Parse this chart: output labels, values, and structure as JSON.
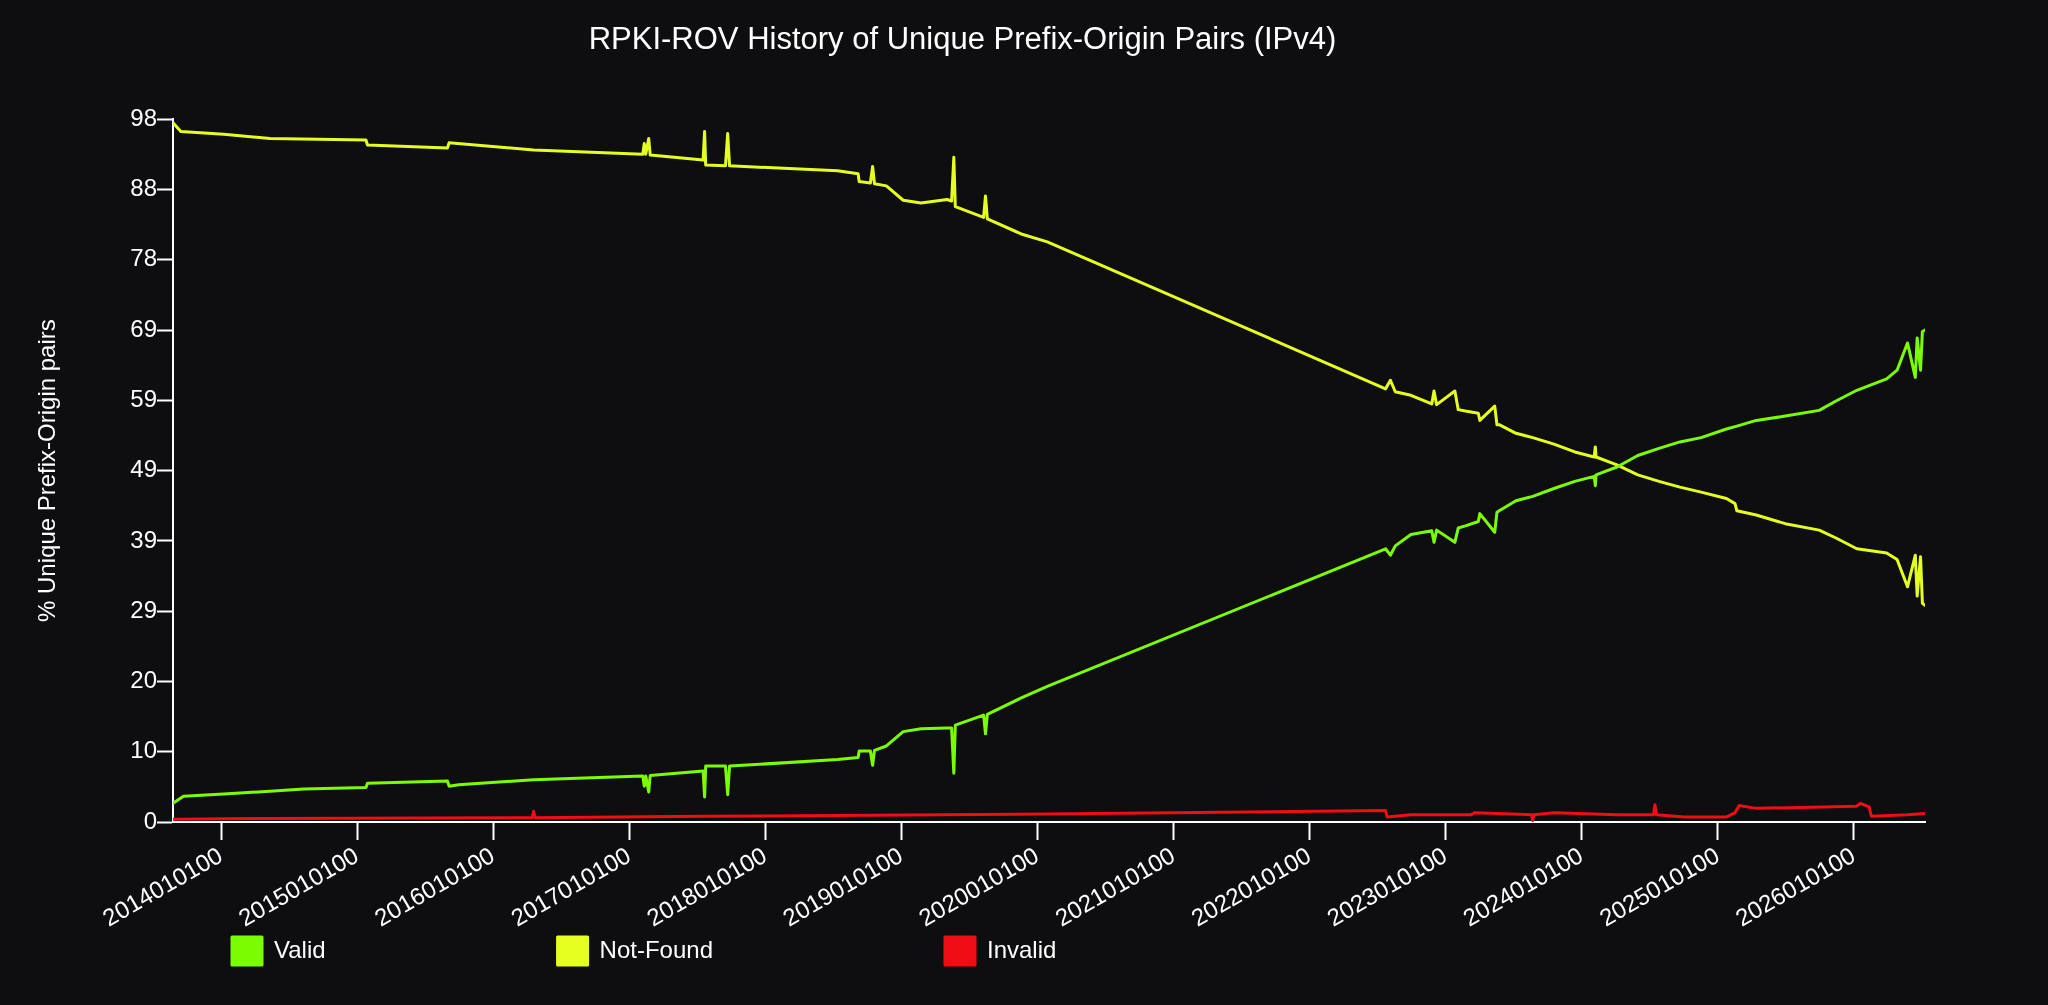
{
  "chart_data": {
    "type": "line",
    "title": "RPKI-ROV History of Unique Prefix-Origin Pairs (IPv4)",
    "ylabel": "% Unique Prefix-Origin pairs",
    "xlim": [
      "2013-08-25",
      "2026-07-11"
    ],
    "xticks": [
      {
        "value": "2014-01-01",
        "label": "2014010100"
      },
      {
        "value": "2015-01-01",
        "label": "2015010100"
      },
      {
        "value": "2016-01-01",
        "label": "2016010100"
      },
      {
        "value": "2017-01-01",
        "label": "2017010100"
      },
      {
        "value": "2018-01-01",
        "label": "2018010100"
      },
      {
        "value": "2019-01-01",
        "label": "2019010100"
      },
      {
        "value": "2020-01-01",
        "label": "2020010100"
      },
      {
        "value": "2021-01-01",
        "label": "2021010100"
      },
      {
        "value": "2022-01-01",
        "label": "2022010100"
      },
      {
        "value": "2023-01-01",
        "label": "2023010100"
      },
      {
        "value": "2024-01-01",
        "label": "2024010100"
      },
      {
        "value": "2025-01-01",
        "label": "2025010100"
      },
      {
        "value": "2026-01-01",
        "label": "2026010100"
      }
    ],
    "ylim": [
      0,
      98
    ],
    "yticks": [
      0,
      {
        "value": 9.8,
        "label": "10"
      },
      {
        "value": 19.6,
        "label": "20"
      },
      {
        "value": 29.4,
        "label": "29"
      },
      {
        "value": 39.2,
        "label": "39"
      },
      49,
      {
        "value": 58.8,
        "label": "59"
      },
      {
        "value": 68.6,
        "label": "69"
      },
      {
        "value": 78.4,
        "label": "78"
      },
      {
        "value": 88.2,
        "label": "88"
      },
      98
    ],
    "grid": false,
    "legend": "bottom left",
    "marker": "none",
    "line_style": "solid",
    "series": [
      {
        "name": "Valid",
        "color": "#7cfc00",
        "x": [
          "2013-08-25",
          "2013-09-22",
          "2014-01-08",
          "2014-05-12",
          "2014-08-11",
          "2015-01-25",
          "2015-01-29",
          "2015-09-01",
          "2015-09-05",
          "2015-10-01",
          "2016-04-19",
          "2017-02-06",
          "2017-02-10",
          "2017-02-14",
          "2017-02-22",
          "2017-02-26",
          "2017-07-18",
          "2017-07-22",
          "2017-07-25",
          "2017-09-16",
          "2017-09-22",
          "2017-09-27",
          "2018-07-14",
          "2018-09-07",
          "2018-09-10",
          "2018-10-10",
          "2018-10-16",
          "2018-10-21",
          "2018-11-22",
          "2019-01-06",
          "2019-02-23",
          "2019-05-04",
          "2019-05-16",
          "2019-05-22",
          "2019-05-26",
          "2019-08-10",
          "2019-08-15",
          "2019-08-20",
          "2019-11-19",
          "2020-01-28",
          "2022-07-24",
          "2022-08-06",
          "2022-08-19",
          "2022-09-30",
          "2022-11-25",
          "2022-12-01",
          "2022-12-08",
          "2023-01-26",
          "2023-02-04",
          "2023-02-23",
          "2023-03-30",
          "2023-04-03",
          "2023-05-13",
          "2023-05-19",
          "2023-05-25",
          "2023-07-09",
          "2023-08-23",
          "2023-10-19",
          "2023-12-14",
          "2024-02-04",
          "2024-02-07",
          "2024-02-09",
          "2024-04-05",
          "2024-05-31",
          "2024-07-27",
          "2024-09-21",
          "2024-11-17",
          "2025-01-24",
          "2025-02-21",
          "2025-04-14",
          "2025-07-01",
          "2025-09-30",
          "2025-11-14",
          "2026-01-09",
          "2026-03-30",
          "2026-04-27",
          "2026-05-25",
          "2026-06-15",
          "2026-06-20",
          "2026-06-29",
          "2026-07-04",
          "2026-07-11"
        ],
        "values": [
          2.6,
          3.6,
          3.9,
          4.3,
          4.6,
          4.8,
          5.4,
          5.7,
          5.0,
          5.2,
          5.9,
          6.4,
          5.0,
          6.4,
          4.2,
          6.5,
          7.1,
          3.5,
          7.8,
          7.8,
          3.8,
          7.8,
          8.7,
          9.0,
          9.9,
          9.9,
          7.9,
          10.0,
          10.6,
          12.6,
          13.0,
          13.1,
          13.1,
          6.8,
          13.5,
          14.9,
          12.3,
          15.0,
          17.3,
          18.9,
          38.1,
          37.2,
          38.5,
          40.1,
          40.6,
          39.0,
          40.7,
          39.0,
          41.0,
          41.3,
          41.9,
          43.0,
          40.4,
          43.2,
          43.4,
          44.8,
          45.4,
          46.5,
          47.5,
          48.2,
          46.9,
          48.4,
          49.5,
          51.1,
          52.1,
          53.0,
          53.6,
          54.8,
          55.2,
          56.0,
          56.6,
          57.4,
          58.7,
          60.2,
          61.8,
          63.0,
          66.8,
          62.0,
          67.5,
          63.0,
          68.4,
          68.6
        ]
      },
      {
        "name": "Not-Found",
        "color": "#e5ff1f",
        "x": [
          "2013-08-25",
          "2013-09-15",
          "2014-01-08",
          "2014-05-12",
          "2015-01-25",
          "2015-01-29",
          "2015-09-01",
          "2015-09-05",
          "2016-04-19",
          "2017-02-06",
          "2017-02-10",
          "2017-02-14",
          "2017-02-22",
          "2017-02-26",
          "2017-07-18",
          "2017-07-22",
          "2017-07-25",
          "2017-09-16",
          "2017-09-22",
          "2017-09-27",
          "2018-07-14",
          "2018-09-07",
          "2018-09-10",
          "2018-10-10",
          "2018-10-16",
          "2018-10-21",
          "2018-11-22",
          "2019-01-06",
          "2019-02-23",
          "2019-05-04",
          "2019-05-16",
          "2019-05-22",
          "2019-05-26",
          "2019-08-10",
          "2019-08-15",
          "2019-08-20",
          "2019-11-19",
          "2020-01-28",
          "2022-07-24",
          "2022-08-06",
          "2022-08-19",
          "2022-09-30",
          "2022-11-25",
          "2022-12-01",
          "2022-12-08",
          "2023-01-26",
          "2023-02-04",
          "2023-02-23",
          "2023-03-30",
          "2023-04-03",
          "2023-05-13",
          "2023-05-19",
          "2023-05-25",
          "2023-07-09",
          "2023-08-23",
          "2023-10-19",
          "2023-12-14",
          "2024-02-04",
          "2024-02-07",
          "2024-02-09",
          "2024-04-05",
          "2024-05-31",
          "2024-07-27",
          "2024-09-21",
          "2024-11-17",
          "2025-01-24",
          "2025-02-16",
          "2025-02-21",
          "2025-04-14",
          "2025-07-01",
          "2025-09-30",
          "2025-11-14",
          "2026-01-09",
          "2026-03-30",
          "2026-04-27",
          "2026-05-25",
          "2026-06-15",
          "2026-06-20",
          "2026-06-29",
          "2026-07-04",
          "2026-07-11"
        ],
        "values": [
          97.5,
          96.3,
          95.9,
          95.3,
          95.1,
          94.4,
          94.0,
          94.7,
          93.7,
          93.1,
          94.6,
          93.1,
          95.3,
          93.0,
          92.3,
          96.3,
          91.6,
          91.5,
          96.0,
          91.5,
          90.8,
          90.4,
          89.3,
          89.1,
          91.4,
          89.0,
          88.7,
          86.7,
          86.3,
          86.8,
          86.6,
          92.7,
          85.8,
          84.3,
          87.3,
          84.1,
          82.0,
          80.9,
          60.4,
          61.6,
          60.0,
          59.5,
          58.3,
          60.1,
          58.2,
          60.1,
          57.5,
          57.3,
          57.0,
          56.0,
          58.0,
          55.4,
          55.4,
          54.2,
          53.6,
          52.7,
          51.6,
          50.9,
          52.3,
          50.9,
          49.8,
          48.4,
          47.5,
          46.7,
          46.0,
          45.1,
          44.4,
          43.4,
          42.8,
          41.6,
          40.7,
          39.6,
          38.1,
          37.5,
          36.6,
          32.8,
          37.2,
          31.5,
          37.0,
          30.5,
          30.2
        ]
      },
      {
        "name": "Invalid",
        "color": "#f00d15",
        "x": [
          "2013-08-25",
          "2014-05-12",
          "2016-04-15",
          "2016-04-19",
          "2016-04-23",
          "2017-07-18",
          "2020-01-28",
          "2022-07-24",
          "2022-07-28",
          "2022-09-30",
          "2023-03-10",
          "2023-03-20",
          "2023-08-20",
          "2023-08-23",
          "2023-08-26",
          "2023-10-19",
          "2024-04-05",
          "2024-07-12",
          "2024-07-16",
          "2024-07-20",
          "2024-10-02",
          "2025-01-24",
          "2025-02-16",
          "2025-02-27",
          "2025-04-14",
          "2026-01-09",
          "2026-01-18",
          "2026-02-11",
          "2026-02-17",
          "2026-05-25",
          "2026-07-11"
        ],
        "values": [
          0.4,
          0.5,
          0.6,
          1.5,
          0.6,
          0.8,
          1.1,
          1.6,
          0.7,
          1.0,
          1.0,
          1.3,
          1.0,
          0.2,
          1.0,
          1.3,
          1.0,
          1.0,
          2.4,
          1.0,
          0.7,
          0.7,
          1.3,
          2.3,
          1.9,
          2.2,
          2.6,
          2.1,
          0.8,
          1.0,
          1.2
        ]
      }
    ]
  }
}
